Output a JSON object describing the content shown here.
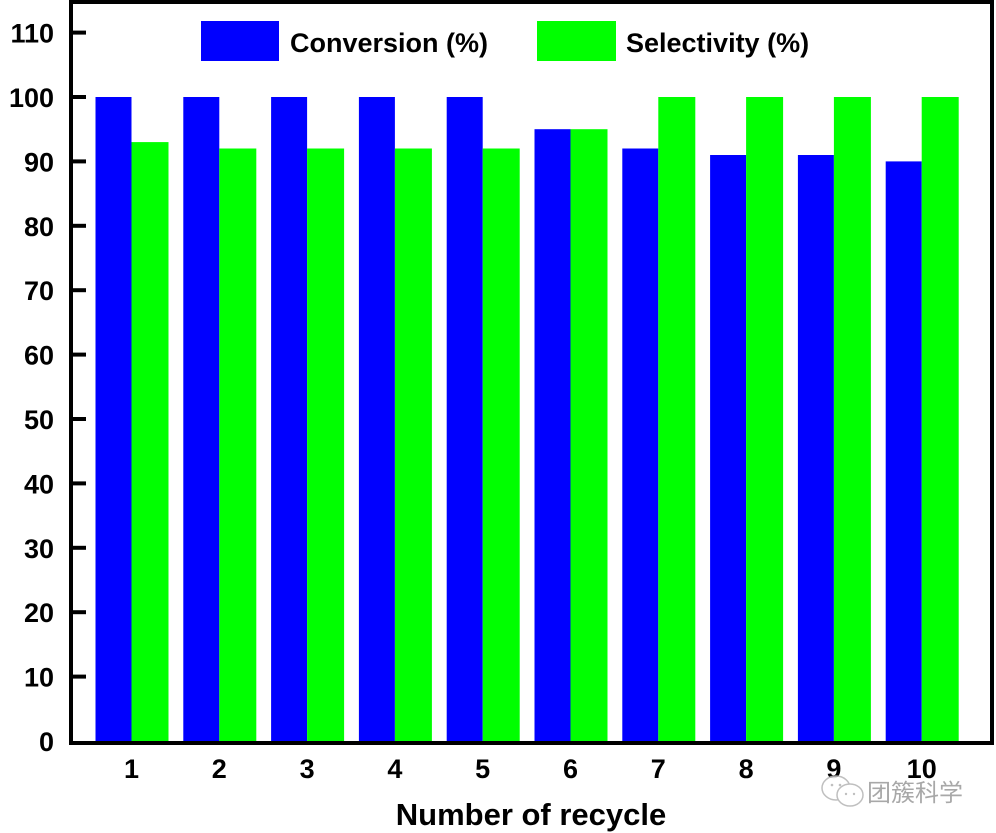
{
  "chart_data": {
    "type": "bar",
    "title": "",
    "xlabel": "Number of recycle",
    "ylabel": "",
    "categories": [
      "1",
      "2",
      "3",
      "4",
      "5",
      "6",
      "7",
      "8",
      "9",
      "10"
    ],
    "series": [
      {
        "name": "Conversion (%)",
        "color": "#0000ff",
        "values": [
          100,
          100,
          100,
          100,
          100,
          95,
          92,
          91,
          91,
          90
        ]
      },
      {
        "name": "Selectivity (%)",
        "color": "#00ff00",
        "values": [
          93,
          92,
          92,
          92,
          92,
          95,
          100,
          100,
          100,
          100
        ]
      }
    ],
    "ylim": [
      0,
      115
    ],
    "yticks": [
      0,
      10,
      20,
      30,
      40,
      50,
      60,
      70,
      80,
      90,
      100,
      110
    ],
    "grid": false,
    "legend_position": "top-center",
    "legend_orientation": "horizontal"
  },
  "watermark": {
    "icon": "wechat-chat-bubbles-icon",
    "text": "团簇科学"
  }
}
